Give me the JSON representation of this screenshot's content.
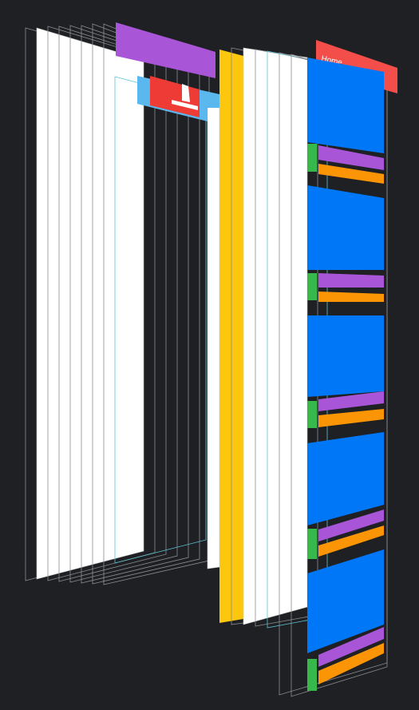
{
  "top_bar": {
    "title": "Home"
  }
}
